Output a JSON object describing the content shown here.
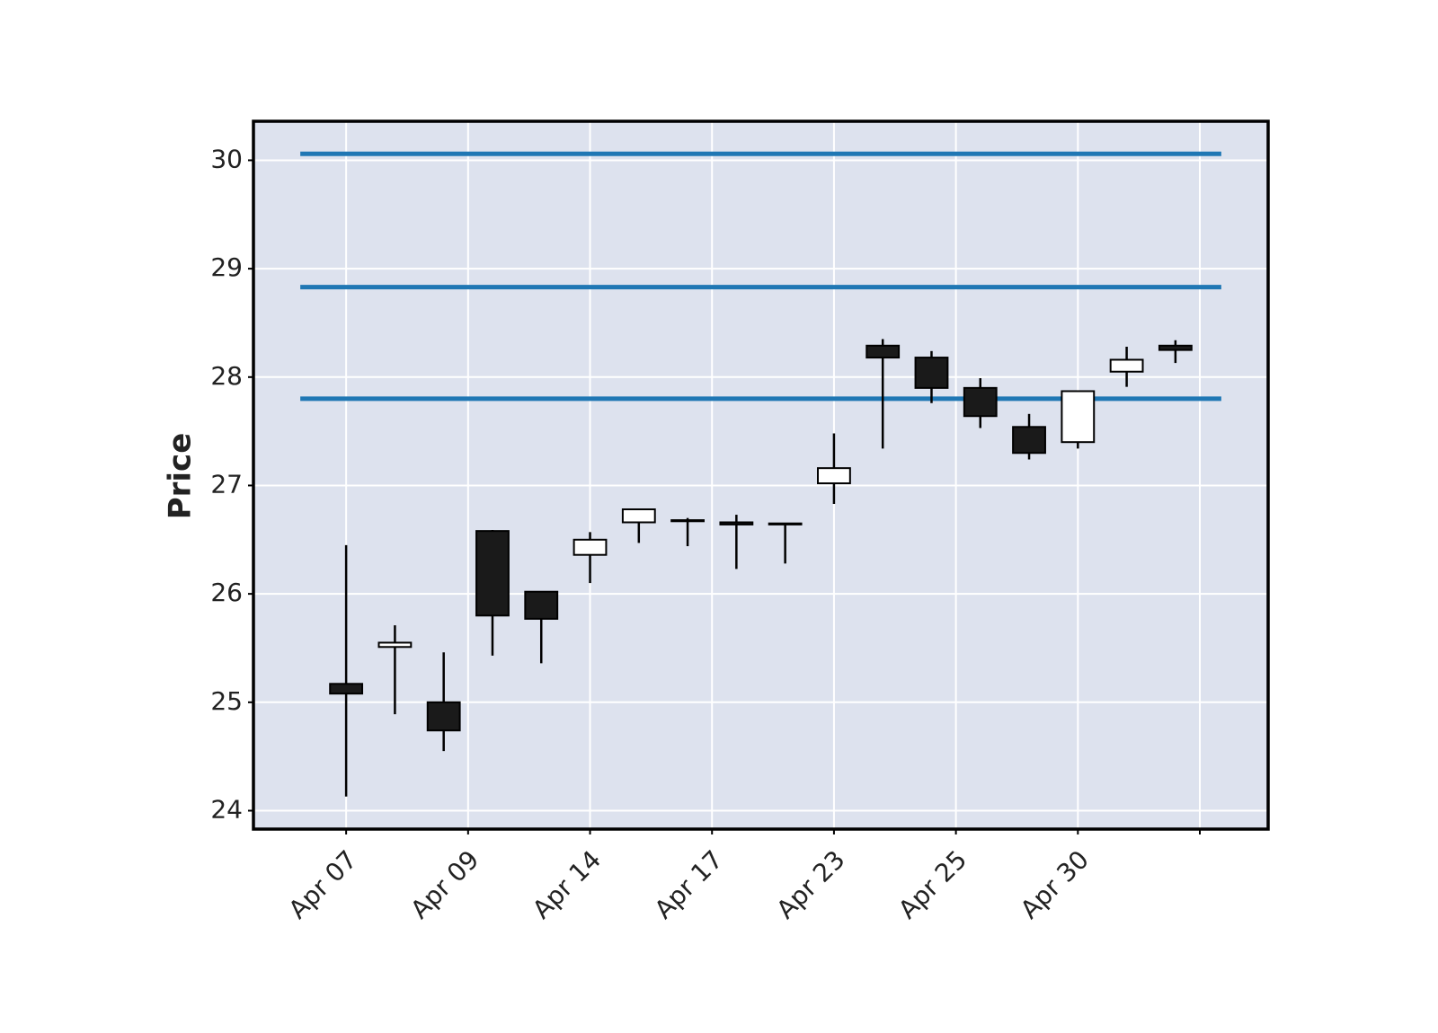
{
  "chart_data": {
    "type": "candlestick",
    "y_label": "Price",
    "x": [
      0,
      1,
      2,
      3,
      4,
      5,
      6,
      7,
      8,
      9,
      10,
      11,
      12,
      13,
      14,
      15,
      16,
      17
    ],
    "open": [
      25.17,
      25.51,
      25.0,
      26.58,
      26.02,
      26.36,
      26.66,
      26.67,
      26.66,
      26.64,
      27.02,
      28.29,
      28.18,
      27.9,
      27.54,
      27.4,
      28.05,
      28.29
    ],
    "high": [
      26.45,
      25.71,
      25.46,
      26.59,
      26.02,
      26.57,
      26.78,
      26.7,
      26.73,
      26.65,
      27.48,
      28.35,
      28.24,
      27.99,
      27.66,
      27.87,
      28.28,
      28.34
    ],
    "low": [
      24.13,
      24.89,
      24.55,
      25.43,
      25.36,
      26.1,
      26.47,
      26.44,
      26.23,
      26.28,
      26.83,
      27.34,
      27.76,
      27.53,
      27.24,
      27.34,
      27.91,
      28.13
    ],
    "close": [
      25.08,
      25.55,
      24.74,
      25.8,
      25.77,
      26.5,
      26.78,
      26.68,
      26.64,
      26.65,
      27.16,
      28.18,
      27.9,
      27.64,
      27.3,
      27.87,
      28.16,
      28.25
    ],
    "up_color": "#ffffff",
    "down_color": "#1a1a1a",
    "edge_color": "#000000",
    "hlines": {
      "values": [
        30.06,
        28.83,
        27.8
      ],
      "color": "#1f77b4"
    },
    "xlim": [
      -1.9,
      18.9
    ],
    "xticks": [
      {
        "value": 0,
        "label": "Apr 07"
      },
      {
        "value": 2.5,
        "label": "Apr 09"
      },
      {
        "value": 5,
        "label": "Apr 14"
      },
      {
        "value": 7.5,
        "label": "Apr 17"
      },
      {
        "value": 10,
        "label": "Apr 23"
      },
      {
        "value": 12.5,
        "label": "Apr 25"
      },
      {
        "value": 15,
        "label": "Apr 30"
      },
      {
        "value": 17.5,
        "label": null
      }
    ],
    "ylim": [
      23.83,
      30.36
    ],
    "yticks": [
      24,
      25,
      26,
      27,
      28,
      29,
      30
    ],
    "grid": true,
    "background": "#dde2ee"
  }
}
